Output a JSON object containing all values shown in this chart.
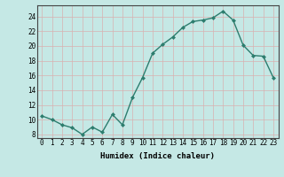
{
  "x": [
    0,
    1,
    2,
    3,
    4,
    5,
    6,
    7,
    8,
    9,
    10,
    11,
    12,
    13,
    14,
    15,
    16,
    17,
    18,
    19,
    20,
    21,
    22,
    23
  ],
  "y": [
    10.5,
    10.0,
    9.3,
    8.9,
    8.0,
    9.0,
    8.3,
    10.7,
    9.3,
    13.0,
    15.7,
    19.0,
    20.2,
    21.2,
    22.5,
    23.3,
    23.5,
    23.8,
    24.7,
    23.5,
    20.1,
    18.7,
    18.6,
    15.7
  ],
  "line_color": "#2d7d6e",
  "marker": "D",
  "marker_size": 2.0,
  "line_width": 1.0,
  "xlabel": "Humidex (Indice chaleur)",
  "bg_color": "#c5e8e5",
  "grid_color": "#d8b0b0",
  "xlim": [
    -0.5,
    23.5
  ],
  "ylim": [
    7.5,
    25.5
  ],
  "yticks": [
    8,
    10,
    12,
    14,
    16,
    18,
    20,
    22,
    24
  ],
  "xticks": [
    0,
    1,
    2,
    3,
    4,
    5,
    6,
    7,
    8,
    9,
    10,
    11,
    12,
    13,
    14,
    15,
    16,
    17,
    18,
    19,
    20,
    21,
    22,
    23
  ],
  "xlabel_fontsize": 6.5,
  "tick_fontsize": 5.5
}
